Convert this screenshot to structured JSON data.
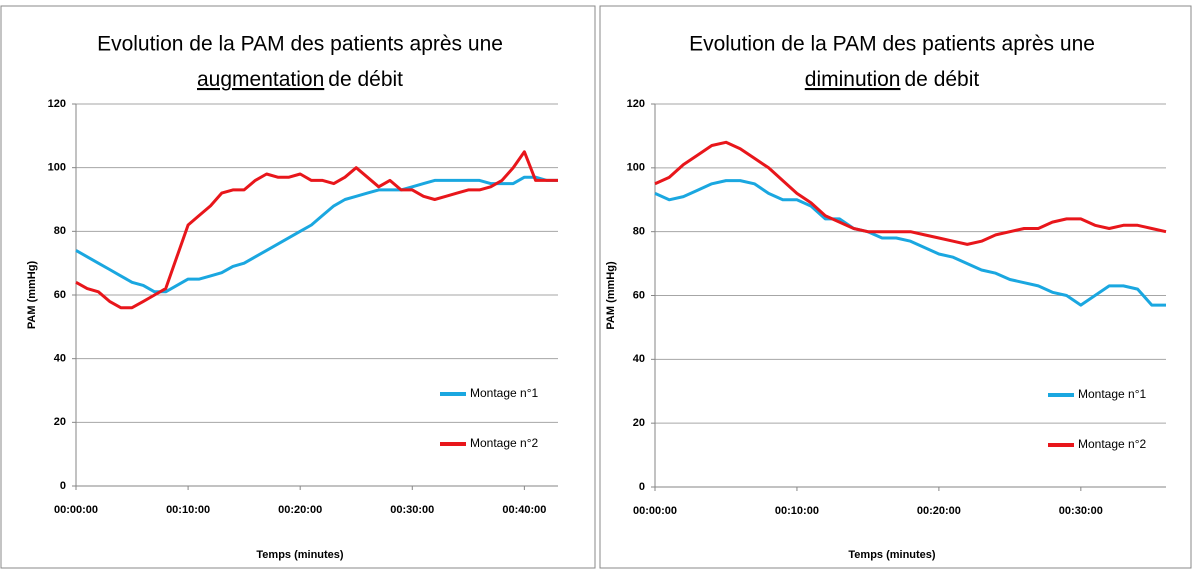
{
  "chart_data": [
    {
      "type": "line",
      "title": [
        "Evolution de la PAM des patients après une",
        "augmentation",
        "de débit"
      ],
      "x_label": "Temps (minutes)",
      "y_label": "PAM (mmHg)",
      "x": [
        0,
        1,
        2,
        3,
        4,
        5,
        6,
        7,
        8,
        9,
        10,
        11,
        12,
        13,
        14,
        15,
        16,
        17,
        18,
        19,
        20,
        21,
        22,
        23,
        24,
        25,
        26,
        27,
        28,
        29,
        30,
        31,
        32,
        33,
        34,
        35,
        36,
        37,
        38,
        39,
        40,
        41,
        42,
        43
      ],
      "series": [
        {
          "name": "Montage n°1",
          "color": "#1aa7e0",
          "values": [
            74,
            72,
            70,
            68,
            66,
            64,
            63,
            61,
            61,
            63,
            65,
            65,
            66,
            67,
            69,
            70,
            72,
            74,
            76,
            78,
            80,
            82,
            85,
            88,
            90,
            91,
            92,
            93,
            93,
            93,
            94,
            95,
            96,
            96,
            96,
            96,
            96,
            95,
            95,
            95,
            97,
            97,
            96,
            96
          ]
        },
        {
          "name": "Montage n°2",
          "color": "#e8161b",
          "values": [
            64,
            62,
            61,
            58,
            56,
            56,
            58,
            60,
            62,
            72,
            82,
            85,
            88,
            92,
            93,
            93,
            96,
            98,
            97,
            97,
            98,
            96,
            96,
            95,
            97,
            100,
            97,
            94,
            96,
            93,
            93,
            91,
            90,
            91,
            92,
            93,
            93,
            94,
            96,
            100,
            105,
            96,
            96,
            96
          ]
        }
      ],
      "xlim": [
        0,
        43
      ],
      "xticks": [
        {
          "value": 0,
          "label": "00:00:00"
        },
        {
          "value": 10,
          "label": "00:10:00"
        },
        {
          "value": 20,
          "label": "00:20:00"
        },
        {
          "value": 30,
          "label": "00:30:00"
        },
        {
          "value": 40,
          "label": "00:40:00"
        }
      ],
      "ylim": [
        0,
        120
      ],
      "yticks": [
        0,
        20,
        40,
        60,
        80,
        100,
        120
      ],
      "grid": true,
      "legend": "lower right"
    },
    {
      "type": "line",
      "title": [
        "Evolution de la PAM des patients après une",
        "diminution",
        "de débit"
      ],
      "x_label": "Temps (minutes)",
      "y_label": "PAM (mmHg)",
      "x": [
        0,
        1,
        2,
        3,
        4,
        5,
        6,
        7,
        8,
        9,
        10,
        11,
        12,
        13,
        14,
        15,
        16,
        17,
        18,
        19,
        20,
        21,
        22,
        23,
        24,
        25,
        26,
        27,
        28,
        29,
        30,
        31,
        32,
        33,
        34,
        35,
        36
      ],
      "series": [
        {
          "name": "Montage n°1",
          "color": "#1aa7e0",
          "values": [
            92,
            90,
            91,
            93,
            95,
            96,
            96,
            95,
            92,
            90,
            90,
            88,
            84,
            84,
            81,
            80,
            78,
            78,
            77,
            75,
            73,
            72,
            70,
            68,
            67,
            65,
            64,
            63,
            61,
            60,
            57,
            60,
            63,
            63,
            62,
            57,
            57
          ]
        },
        {
          "name": "Montage n°2",
          "color": "#e8161b",
          "values": [
            95,
            97,
            101,
            104,
            107,
            108,
            106,
            103,
            100,
            96,
            92,
            89,
            85,
            83,
            81,
            80,
            80,
            80,
            80,
            79,
            78,
            77,
            76,
            77,
            79,
            80,
            81,
            81,
            83,
            84,
            84,
            82,
            81,
            82,
            82,
            81,
            80
          ]
        }
      ],
      "xlim": [
        0,
        36
      ],
      "xticks": [
        {
          "value": 0,
          "label": "00:00:00"
        },
        {
          "value": 10,
          "label": "00:10:00"
        },
        {
          "value": 20,
          "label": "00:20:00"
        },
        {
          "value": 30,
          "label": "00:30:00"
        }
      ],
      "ylim": [
        0,
        120
      ],
      "yticks": [
        0,
        20,
        40,
        60,
        80,
        100,
        120
      ],
      "grid": true,
      "legend": "lower right"
    }
  ]
}
